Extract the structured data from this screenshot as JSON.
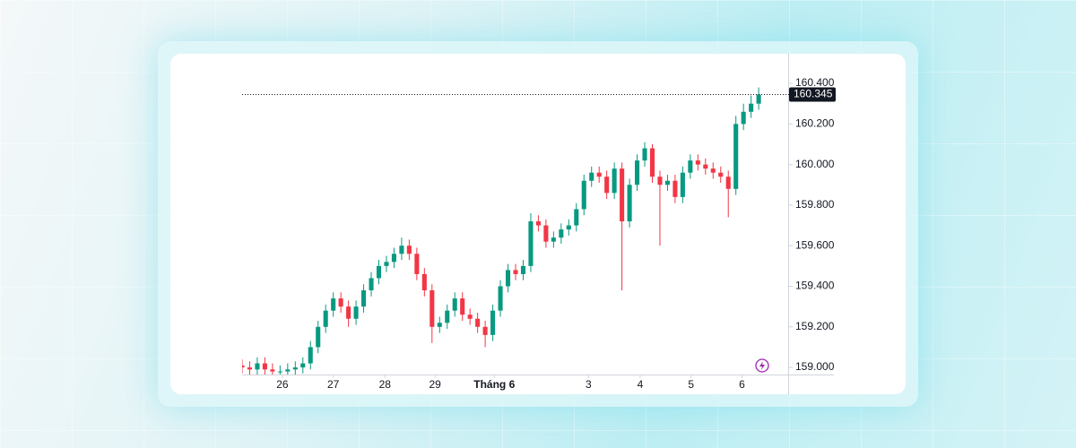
{
  "chart_data": {
    "type": "candlestick",
    "x": [
      0,
      1,
      2,
      3,
      4,
      5,
      6,
      7,
      8,
      9,
      10,
      11,
      12,
      13,
      14,
      15,
      16,
      17,
      18,
      19,
      20,
      21,
      22,
      23,
      24,
      25,
      26,
      27,
      28,
      29,
      30,
      31,
      32,
      33,
      34,
      35,
      36,
      37,
      38,
      39,
      40,
      41,
      42,
      43,
      44,
      45,
      46,
      47,
      48,
      49,
      50,
      51,
      52,
      53,
      54,
      55,
      56,
      57,
      58,
      59,
      60,
      61,
      62,
      63,
      64,
      65,
      66,
      67,
      68
    ],
    "open": [
      159.01,
      159.0,
      158.99,
      159.02,
      158.99,
      158.98,
      158.98,
      158.99,
      159.0,
      159.02,
      159.1,
      159.2,
      159.28,
      159.34,
      159.3,
      159.24,
      159.3,
      159.38,
      159.44,
      159.5,
      159.52,
      159.56,
      159.6,
      159.56,
      159.46,
      159.38,
      159.2,
      159.22,
      159.28,
      159.34,
      159.26,
      159.24,
      159.2,
      159.16,
      159.28,
      159.4,
      159.48,
      159.46,
      159.5,
      159.72,
      159.7,
      159.62,
      159.64,
      159.68,
      159.7,
      159.78,
      159.92,
      159.96,
      159.94,
      159.86,
      159.98,
      159.72,
      159.9,
      160.02,
      160.08,
      159.94,
      159.9,
      159.92,
      159.84,
      159.96,
      160.02,
      160.0,
      159.98,
      159.96,
      159.94,
      159.88,
      160.2,
      160.26,
      160.3
    ],
    "high": [
      159.04,
      159.03,
      159.05,
      159.05,
      159.02,
      159.01,
      159.02,
      159.03,
      159.05,
      159.13,
      159.23,
      159.31,
      159.37,
      159.37,
      159.33,
      159.33,
      159.41,
      159.47,
      159.53,
      159.55,
      159.59,
      159.64,
      159.63,
      159.59,
      159.49,
      159.41,
      159.25,
      159.31,
      159.37,
      159.37,
      159.29,
      159.27,
      159.23,
      159.31,
      159.43,
      159.51,
      159.51,
      159.53,
      159.76,
      159.75,
      159.73,
      159.67,
      159.71,
      159.73,
      159.81,
      159.95,
      159.99,
      159.99,
      159.97,
      160.01,
      160.01,
      159.93,
      160.05,
      160.11,
      160.1,
      159.97,
      159.95,
      159.95,
      159.99,
      160.05,
      160.05,
      160.03,
      160.01,
      159.99,
      159.97,
      160.24,
      160.3,
      160.34,
      160.38
    ],
    "low": [
      158.97,
      158.96,
      158.96,
      158.96,
      158.95,
      158.95,
      158.95,
      158.96,
      158.97,
      158.99,
      159.07,
      159.17,
      159.25,
      159.27,
      159.2,
      159.21,
      159.27,
      159.35,
      159.41,
      159.47,
      159.49,
      159.53,
      159.53,
      159.43,
      159.35,
      159.12,
      159.17,
      159.19,
      159.25,
      159.23,
      159.21,
      159.17,
      159.1,
      159.13,
      159.25,
      159.37,
      159.43,
      159.43,
      159.47,
      159.67,
      159.59,
      159.59,
      159.61,
      159.65,
      159.67,
      159.75,
      159.89,
      159.91,
      159.83,
      159.83,
      159.38,
      159.69,
      159.87,
      159.99,
      159.91,
      159.6,
      159.87,
      159.81,
      159.81,
      159.93,
      159.97,
      159.95,
      159.93,
      159.91,
      159.74,
      159.85,
      160.17,
      160.23,
      160.27
    ],
    "close": [
      159.0,
      158.99,
      159.02,
      158.99,
      158.98,
      158.98,
      158.99,
      159.0,
      159.02,
      159.1,
      159.2,
      159.28,
      159.34,
      159.3,
      159.24,
      159.3,
      159.38,
      159.44,
      159.5,
      159.52,
      159.56,
      159.6,
      159.56,
      159.46,
      159.38,
      159.2,
      159.22,
      159.28,
      159.34,
      159.26,
      159.24,
      159.2,
      159.16,
      159.28,
      159.4,
      159.48,
      159.46,
      159.5,
      159.72,
      159.7,
      159.62,
      159.64,
      159.68,
      159.7,
      159.78,
      159.92,
      159.96,
      159.94,
      159.86,
      159.98,
      159.72,
      159.9,
      160.02,
      160.08,
      159.94,
      159.9,
      159.92,
      159.84,
      159.96,
      160.02,
      160.0,
      159.98,
      159.96,
      159.94,
      159.88,
      160.2,
      160.26,
      160.3,
      160.345
    ],
    "up_color": "#089981",
    "down_color": "#f23645",
    "last_price": 160.345,
    "xlim": [
      0,
      72
    ],
    "xticks": [
      {
        "value": 5.3,
        "label": "26"
      },
      {
        "value": 12.0,
        "label": "27"
      },
      {
        "value": 18.8,
        "label": "28"
      },
      {
        "value": 25.4,
        "label": "29"
      },
      {
        "value": 33.2,
        "label": "Tháng 6"
      },
      {
        "value": 45.6,
        "label": "3"
      },
      {
        "value": 52.4,
        "label": "4"
      },
      {
        "value": 59.1,
        "label": "5"
      },
      {
        "value": 65.8,
        "label": "6"
      }
    ],
    "ylim": [
      158.965,
      160.546
    ],
    "yticks": [
      {
        "value": 159.0,
        "label": "159.000"
      },
      {
        "value": 159.2,
        "label": "159.200"
      },
      {
        "value": 159.4,
        "label": "159.400"
      },
      {
        "value": 159.6,
        "label": "159.600"
      },
      {
        "value": 159.8,
        "label": "159.800"
      },
      {
        "value": 160.0,
        "label": "160.000"
      },
      {
        "value": 160.2,
        "label": "160.200"
      },
      {
        "value": 160.4,
        "label": "160.400"
      }
    ]
  }
}
